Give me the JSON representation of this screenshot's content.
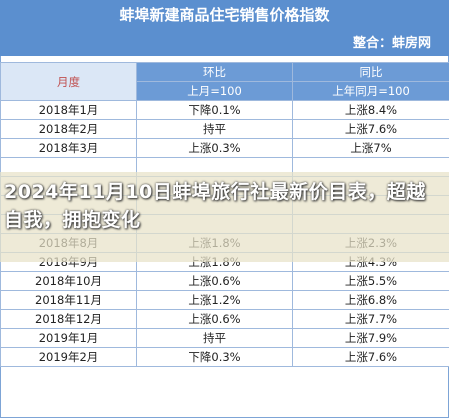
{
  "header": {
    "title": "蚌埠新建商品住宅销售价格指数",
    "source": "整合：蚌房网"
  },
  "table": {
    "col_month": "月度",
    "col_mom": "环比",
    "col_yoy": "同比",
    "sub_mom": "上月=100",
    "sub_yoy": "上年同月=100",
    "rows": [
      {
        "month": "2018年1月",
        "mom": "下降0.1%",
        "yoy": "上涨8.4%"
      },
      {
        "month": "2018年2月",
        "mom": "持平",
        "yoy": "上涨7.6%"
      },
      {
        "month": "2018年3月",
        "mom": "上涨0.3%",
        "yoy": "上涨7%"
      },
      {
        "month": "",
        "mom": "",
        "yoy": ""
      },
      {
        "month": "",
        "mom": "",
        "yoy": ""
      },
      {
        "month": "",
        "mom": "",
        "yoy": ""
      },
      {
        "month": "",
        "mom": "",
        "yoy": ""
      },
      {
        "month": "2018年8月",
        "mom": "上涨1.8%",
        "yoy": "上涨2.3%"
      },
      {
        "month": "2018年9月",
        "mom": "上涨1.8%",
        "yoy": "上涨4.3%"
      },
      {
        "month": "2018年10月",
        "mom": "上涨0.6%",
        "yoy": "上涨5.5%"
      },
      {
        "month": "2018年11月",
        "mom": "上涨1.2%",
        "yoy": "上涨6.8%"
      },
      {
        "month": "2018年12月",
        "mom": "上涨0.6%",
        "yoy": "上涨7.7%"
      },
      {
        "month": "2019年1月",
        "mom": "持平",
        "yoy": "上涨7.9%"
      },
      {
        "month": "2019年2月",
        "mom": "下降0.3%",
        "yoy": "上涨7.6%"
      }
    ]
  },
  "overlay": {
    "headline": "2024年11月10日蚌埠旅行社最新价目表，超越自我，拥抱变化"
  }
}
